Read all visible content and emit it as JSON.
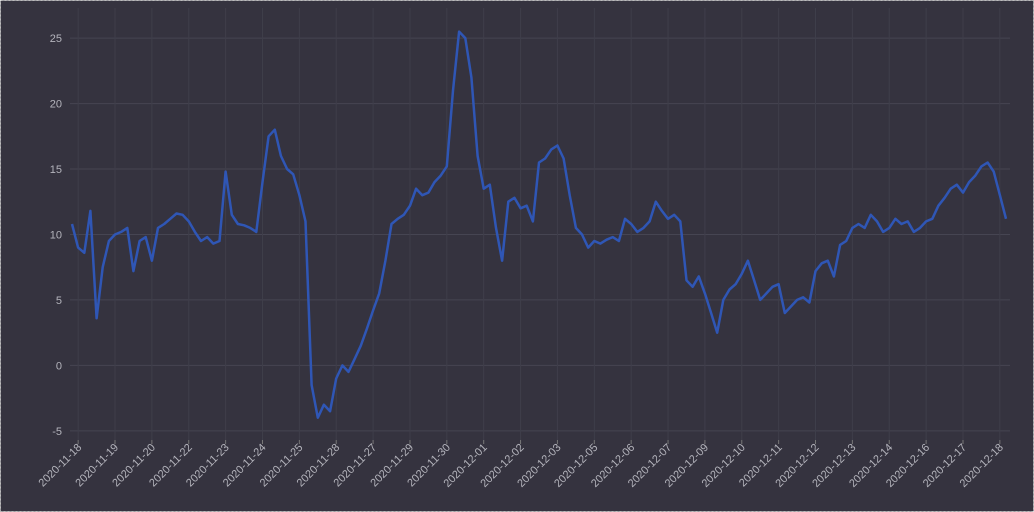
{
  "chart_data": {
    "type": "line",
    "color": "#2f56b5",
    "grid": true,
    "ylim": [
      -5.7,
      27.3
    ],
    "yticks": [
      -5,
      0,
      5,
      10,
      15,
      20,
      25
    ],
    "categories": [
      null,
      "2020-11-18",
      null,
      null,
      null,
      null,
      null,
      "2020-11-19",
      null,
      null,
      null,
      null,
      null,
      "2020-11-20",
      null,
      null,
      null,
      null,
      null,
      "2020-11-22",
      null,
      null,
      null,
      null,
      null,
      "2020-11-23",
      null,
      null,
      null,
      null,
      null,
      "2020-11-24",
      null,
      null,
      null,
      null,
      null,
      "2020-11-25",
      null,
      null,
      null,
      null,
      null,
      "2020-11-28",
      null,
      null,
      null,
      null,
      null,
      "2020-11-27",
      null,
      null,
      null,
      null,
      null,
      "2020-11-29",
      null,
      null,
      null,
      null,
      null,
      "2020-11-30",
      null,
      null,
      null,
      null,
      null,
      "2020-12-01",
      null,
      null,
      null,
      null,
      null,
      "2020-12-02",
      null,
      null,
      null,
      null,
      null,
      "2020-12-03",
      null,
      null,
      null,
      null,
      null,
      "2020-12-05",
      null,
      null,
      null,
      null,
      null,
      "2020-12-06",
      null,
      null,
      null,
      null,
      null,
      "2020-12-07",
      null,
      null,
      null,
      null,
      null,
      "2020-12-09",
      null,
      null,
      null,
      null,
      null,
      "2020-12-10",
      null,
      null,
      null,
      null,
      null,
      "2020-12-11",
      null,
      null,
      null,
      null,
      null,
      "2020-12-12",
      null,
      null,
      null,
      null,
      null,
      "2020-12-13",
      null,
      null,
      null,
      null,
      null,
      "2020-12-14",
      null,
      null,
      null,
      null,
      null,
      "2020-12-16",
      null,
      null,
      null,
      null,
      null,
      "2020-12-17",
      null,
      null,
      null,
      null,
      null,
      "2020-12-18",
      null
    ],
    "values": [
      10.8,
      9,
      8.6,
      11.8,
      3.6,
      7.5,
      9.5,
      10,
      10.2,
      10.5,
      7.2,
      9.5,
      9.8,
      8,
      10.5,
      10.8,
      11.2,
      11.6,
      11.5,
      11,
      10.2,
      9.5,
      9.8,
      9.3,
      9.5,
      14.8,
      11.5,
      10.8,
      10.7,
      10.5,
      10.2,
      14,
      17.5,
      18,
      16,
      15,
      14.6,
      13,
      11,
      -1.5,
      -4,
      -3,
      -3.5,
      -1,
      0,
      -0.5,
      0.5,
      1.5,
      2.8,
      4.2,
      5.5,
      8,
      10.8,
      11.2,
      11.5,
      12.2,
      13.5,
      13,
      13.2,
      14,
      14.5,
      15.2,
      21,
      25.5,
      25,
      22,
      16,
      13.5,
      13.8,
      10.5,
      8,
      12.5,
      12.8,
      12,
      12.2,
      11,
      15.5,
      15.8,
      16.5,
      16.8,
      15.8,
      13,
      10.5,
      10,
      9,
      9.5,
      9.3,
      9.6,
      9.8,
      9.5,
      11.2,
      10.8,
      10.2,
      10.5,
      11,
      12.5,
      11.8,
      11.2,
      11.5,
      11,
      6.5,
      6,
      6.8,
      5.5,
      4,
      2.5,
      5,
      5.8,
      6.2,
      7,
      8,
      6.5,
      5,
      5.5,
      6,
      6.2,
      4,
      4.5,
      5,
      5.2,
      4.8,
      7.2,
      7.8,
      8,
      6.8,
      9.2,
      9.5,
      10.5,
      10.8,
      10.5,
      11.5,
      11,
      10.2,
      10.5,
      11.2,
      10.8,
      11,
      10.2,
      10.5,
      11,
      11.2,
      12.2,
      12.8,
      13.5,
      13.8,
      13.2,
      14,
      14.5,
      15.2,
      15.5,
      14.8,
      13,
      11.2
    ]
  }
}
